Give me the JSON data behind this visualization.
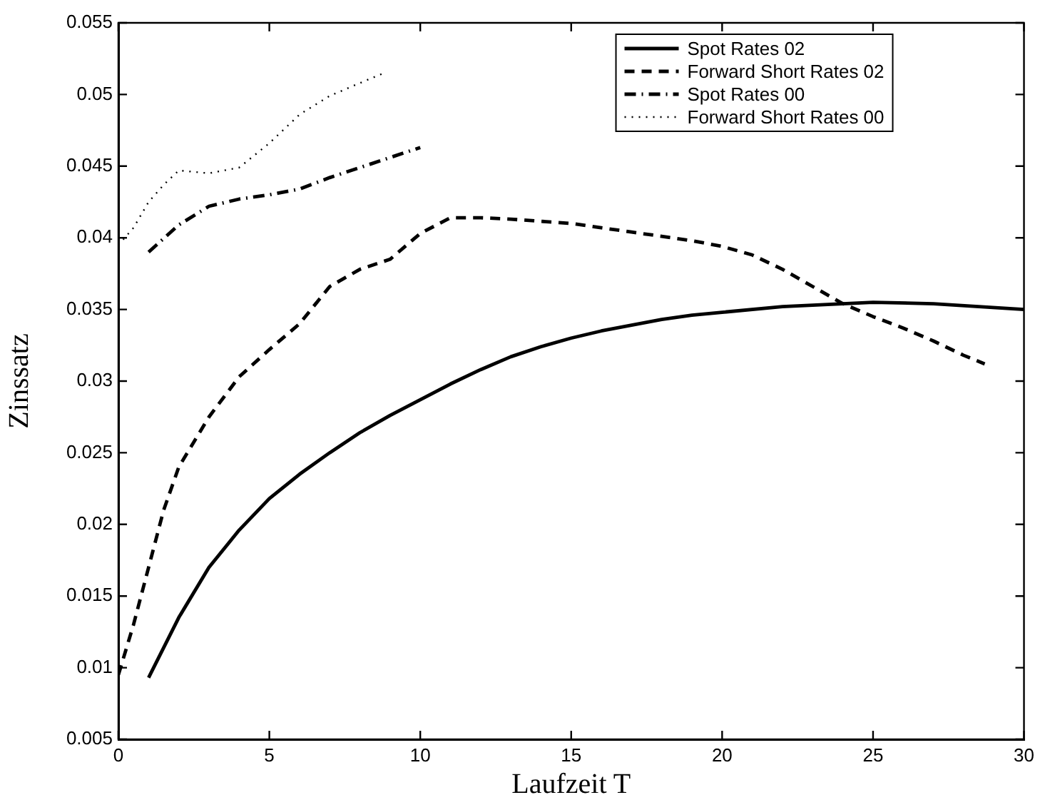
{
  "chart_data": {
    "type": "line",
    "xlabel": "Laufzeit T",
    "ylabel": "Zinssatz",
    "xlim": [
      0,
      30
    ],
    "xticks": [
      0,
      5,
      10,
      15,
      20,
      25,
      30
    ],
    "ylim": [
      0.005,
      0.055
    ],
    "yticks": [
      0.005,
      0.01,
      0.015,
      0.02,
      0.025,
      0.03,
      0.035,
      0.04,
      0.045,
      0.05,
      0.055
    ],
    "grid": false,
    "legend": "top right",
    "marker": "none",
    "series": [
      {
        "name": "Spot Rates 02",
        "color": "#000000",
        "line_style": "solid",
        "x": [
          1,
          2,
          3,
          4,
          5,
          6,
          7,
          8,
          9,
          10,
          11,
          12,
          13,
          14,
          15,
          16,
          17,
          18,
          19,
          20,
          22,
          24,
          25,
          27,
          30
        ],
        "values": [
          0.0093,
          0.0135,
          0.017,
          0.0196,
          0.0218,
          0.0235,
          0.025,
          0.0264,
          0.0276,
          0.0287,
          0.0298,
          0.0308,
          0.0317,
          0.0324,
          0.033,
          0.0335,
          0.0339,
          0.0343,
          0.0346,
          0.0348,
          0.0352,
          0.0354,
          0.0355,
          0.0354,
          0.035
        ]
      },
      {
        "name": "Forward Short Rates 02",
        "color": "#000000",
        "line_style": "dashed",
        "x": [
          0,
          0.5,
          1,
          1.5,
          2,
          3,
          4,
          5,
          6,
          7,
          8,
          9,
          10,
          11,
          12,
          13,
          15,
          17,
          19,
          20,
          21,
          22,
          23,
          24,
          25,
          26,
          27,
          28,
          28.7
        ],
        "values": [
          0.0095,
          0.013,
          0.017,
          0.021,
          0.024,
          0.0275,
          0.0303,
          0.0322,
          0.034,
          0.0366,
          0.0378,
          0.0385,
          0.0403,
          0.0414,
          0.0414,
          0.0413,
          0.041,
          0.0404,
          0.0398,
          0.0394,
          0.0388,
          0.0378,
          0.0366,
          0.0354,
          0.0345,
          0.0337,
          0.0328,
          0.0318,
          0.0312
        ]
      },
      {
        "name": "Spot Rates 00",
        "color": "#000000",
        "line_style": "dashdot",
        "x": [
          1,
          2,
          3,
          4,
          5,
          6,
          7,
          8,
          9,
          10
        ],
        "values": [
          0.039,
          0.0409,
          0.0422,
          0.0427,
          0.043,
          0.0434,
          0.0442,
          0.0449,
          0.0456,
          0.0463
        ]
      },
      {
        "name": "Forward Short Rates 00",
        "color": "#000000",
        "line_style": "dotted",
        "x": [
          0,
          0.5,
          1,
          1.5,
          2,
          3,
          4,
          5,
          6,
          7,
          8,
          8.8
        ],
        "values": [
          0.0395,
          0.0407,
          0.0425,
          0.0437,
          0.0447,
          0.0445,
          0.0449,
          0.0466,
          0.0486,
          0.0499,
          0.0508,
          0.0515
        ]
      }
    ]
  }
}
